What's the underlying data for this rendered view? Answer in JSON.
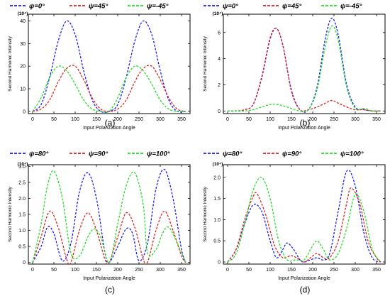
{
  "colors": {
    "blue": "#1a1aff",
    "red": "#e02020",
    "green": "#22dd22",
    "axis": "#000000"
  },
  "chart_data": [
    {
      "panel_label": "(a)",
      "type": "line",
      "xlabel": "Input  Polarization Angle",
      "ylabel": "Second Harmonic Intensity",
      "y_unit": "(10⁴)",
      "xlim": [
        -10,
        370
      ],
      "ylim": [
        -1,
        43
      ],
      "xticks": [
        0,
        50,
        100,
        150,
        200,
        250,
        300,
        350
      ],
      "yticks": [
        0,
        10,
        20,
        30,
        40
      ],
      "ytick_labels": [
        "0",
        "10",
        "20",
        "30",
        "40"
      ],
      "legend": "top",
      "series": [
        {
          "name": "ψ=0°",
          "color": "blue",
          "x": [
            0,
            20,
            40,
            60,
            80,
            100,
            120,
            140,
            160,
            180,
            200,
            220,
            240,
            260,
            280,
            300,
            320,
            340,
            360
          ],
          "y": [
            0,
            3,
            15,
            31,
            40,
            34,
            18,
            5,
            0,
            0,
            3,
            15,
            31,
            40,
            34,
            18,
            5,
            0,
            0
          ]
        },
        {
          "name": "ψ=45°",
          "color": "red",
          "x": [
            0,
            20,
            40,
            60,
            80,
            100,
            120,
            140,
            160,
            180,
            200,
            220,
            240,
            260,
            280,
            300,
            320,
            340,
            360
          ],
          "y": [
            0,
            1,
            5,
            13,
            19,
            20,
            14,
            6,
            1,
            0,
            1,
            5,
            13,
            19,
            20,
            14,
            6,
            1,
            0
          ]
        },
        {
          "name": "ψ=-45°",
          "color": "green",
          "x": [
            0,
            20,
            40,
            60,
            80,
            100,
            120,
            140,
            160,
            180,
            200,
            220,
            240,
            260,
            280,
            300,
            320,
            340,
            360
          ],
          "y": [
            0,
            6,
            15,
            20,
            18,
            12,
            5,
            1,
            0,
            0,
            6,
            15,
            20,
            18,
            12,
            5,
            1,
            0,
            0
          ]
        }
      ]
    },
    {
      "panel_label": "(b)",
      "type": "line",
      "xlabel": "Input  Polarization Angle",
      "ylabel": "Second Harmonic Intensity",
      "y_unit": "(10⁴)",
      "xlim": [
        -10,
        370
      ],
      "ylim": [
        -0.2,
        7.4
      ],
      "xticks": [
        0,
        50,
        100,
        150,
        200,
        250,
        300,
        350
      ],
      "yticks": [
        0,
        2,
        4,
        6
      ],
      "ytick_labels": [
        "0",
        "2",
        "4",
        "6"
      ],
      "legend": "top",
      "series": [
        {
          "name": "ψ=0°",
          "color": "blue",
          "x": [
            0,
            20,
            40,
            60,
            80,
            100,
            115,
            130,
            150,
            170,
            190,
            210,
            230,
            245,
            260,
            280,
            300,
            320,
            340,
            360
          ],
          "y": [
            0,
            0,
            0.1,
            0.5,
            2.5,
            5.5,
            6.3,
            5.0,
            1.6,
            0.1,
            0.1,
            1.8,
            5.6,
            7.1,
            5.8,
            2.0,
            0.3,
            0.1,
            0,
            0
          ]
        },
        {
          "name": "ψ=45°",
          "color": "red",
          "x": [
            0,
            20,
            40,
            60,
            80,
            100,
            115,
            130,
            150,
            170,
            190,
            210,
            230,
            245,
            260,
            280,
            300,
            320,
            340,
            360
          ],
          "y": [
            0,
            0,
            0.1,
            0.5,
            2.6,
            5.6,
            6.3,
            5.0,
            1.5,
            0.1,
            0.1,
            0.3,
            0.6,
            0.8,
            0.6,
            0.3,
            0.1,
            0.1,
            0,
            0
          ]
        },
        {
          "name": "ψ=-45°",
          "color": "green",
          "x": [
            0,
            20,
            40,
            60,
            80,
            100,
            115,
            130,
            150,
            170,
            190,
            210,
            230,
            245,
            260,
            280,
            300,
            320,
            340,
            360
          ],
          "y": [
            0,
            0,
            0,
            0.1,
            0.3,
            0.5,
            0.5,
            0.4,
            0.2,
            0,
            0.1,
            1.6,
            5.0,
            6.5,
            5.4,
            1.8,
            0.2,
            0.2,
            0,
            0
          ]
        }
      ]
    },
    {
      "panel_label": "(c)",
      "type": "line",
      "xlabel": "Input Polarization Angle",
      "ylabel": "Second Harmonic Intensity",
      "y_unit": "(10⁴)",
      "xlim": [
        -10,
        370
      ],
      "ylim": [
        -0.05,
        3.05
      ],
      "xticks": [
        0,
        50,
        100,
        150,
        200,
        250,
        300,
        350
      ],
      "yticks": [
        0,
        0.5,
        1.0,
        1.5,
        2.0,
        2.5,
        3.0
      ],
      "ytick_labels": [
        "0",
        "0.5",
        "1.0",
        "1.5",
        "2.0",
        "2.5",
        "3.0"
      ],
      "legend": "top",
      "series": [
        {
          "name": "ψ=80°",
          "color": "blue",
          "x": [
            0,
            20,
            35,
            50,
            70,
            90,
            110,
            130,
            150,
            170,
            180,
            200,
            220,
            235,
            250,
            270,
            290,
            310,
            330,
            350,
            360
          ],
          "y": [
            0,
            0.5,
            1.1,
            0.9,
            0.05,
            0.6,
            2.2,
            2.8,
            2.0,
            0.3,
            0,
            0.5,
            1.05,
            0.9,
            0.05,
            0.6,
            2.3,
            2.9,
            2.0,
            0.4,
            0
          ]
        },
        {
          "name": "ψ=90°",
          "color": "red",
          "x": [
            0,
            20,
            40,
            60,
            80,
            90,
            110,
            130,
            150,
            170,
            180,
            200,
            220,
            240,
            260,
            270,
            290,
            310,
            330,
            350,
            360
          ],
          "y": [
            0,
            0.8,
            1.6,
            1.1,
            0.1,
            0,
            1.0,
            1.55,
            1.0,
            0.1,
            0,
            0.8,
            1.55,
            1.1,
            0.1,
            0,
            1.0,
            1.6,
            1.0,
            0.2,
            0
          ]
        },
        {
          "name": "ψ=100°",
          "color": "green",
          "x": [
            0,
            20,
            35,
            50,
            70,
            90,
            110,
            130,
            145,
            160,
            180,
            200,
            220,
            240,
            260,
            270,
            290,
            305,
            320,
            340,
            360
          ],
          "y": [
            0,
            1.2,
            2.4,
            2.85,
            2.0,
            0.3,
            0.2,
            0.8,
            1.05,
            0.8,
            0,
            1.2,
            2.4,
            2.8,
            1.8,
            0.3,
            0.4,
            0.9,
            1.1,
            0.6,
            0
          ]
        }
      ]
    },
    {
      "panel_label": "(d)",
      "type": "line",
      "xlabel": "Input Polarization Angle",
      "ylabel": "Second Harmonic Intensity",
      "y_unit": "(10⁴)",
      "xlim": [
        -10,
        370
      ],
      "ylim": [
        -0.05,
        2.3
      ],
      "xticks": [
        0,
        50,
        100,
        150,
        200,
        250,
        300,
        350
      ],
      "yticks": [
        0,
        0.5,
        1.0,
        1.5,
        2.0
      ],
      "ytick_labels": [
        "0",
        "0.5",
        "1.0",
        "1.5",
        "2.0"
      ],
      "legend": "top",
      "series": [
        {
          "name": "ψ=80°",
          "color": "blue",
          "x": [
            0,
            20,
            40,
            60,
            80,
            100,
            115,
            130,
            140,
            155,
            170,
            180,
            195,
            210,
            225,
            240,
            260,
            280,
            300,
            320,
            340,
            360
          ],
          "y": [
            0,
            0.3,
            0.9,
            1.35,
            1.2,
            0.5,
            0.1,
            0.3,
            0.45,
            0.3,
            0.05,
            0,
            0.05,
            0.1,
            0.05,
            0.2,
            1.2,
            2.15,
            1.8,
            0.7,
            0.1,
            0
          ]
        },
        {
          "name": "ψ=90°",
          "color": "red",
          "x": [
            0,
            20,
            40,
            60,
            70,
            90,
            110,
            130,
            150,
            170,
            180,
            195,
            210,
            225,
            240,
            260,
            280,
            290,
            310,
            330,
            350,
            360
          ],
          "y": [
            0,
            0.3,
            1.0,
            1.55,
            1.6,
            1.1,
            0.4,
            0.1,
            0.15,
            0.05,
            0,
            0.1,
            0.2,
            0.1,
            0.1,
            0.5,
            1.4,
            1.75,
            1.4,
            0.5,
            0.1,
            0
          ]
        },
        {
          "name": "ψ=100°",
          "color": "green",
          "x": [
            0,
            20,
            40,
            60,
            80,
            100,
            120,
            140,
            160,
            180,
            195,
            210,
            225,
            240,
            260,
            280,
            300,
            320,
            340,
            360
          ],
          "y": [
            0,
            0.2,
            0.9,
            1.7,
            2.0,
            1.5,
            0.5,
            0.05,
            0.05,
            0.05,
            0.3,
            0.5,
            0.3,
            0.05,
            0.2,
            0.8,
            1.6,
            1.2,
            0.3,
            0
          ]
        }
      ]
    }
  ]
}
